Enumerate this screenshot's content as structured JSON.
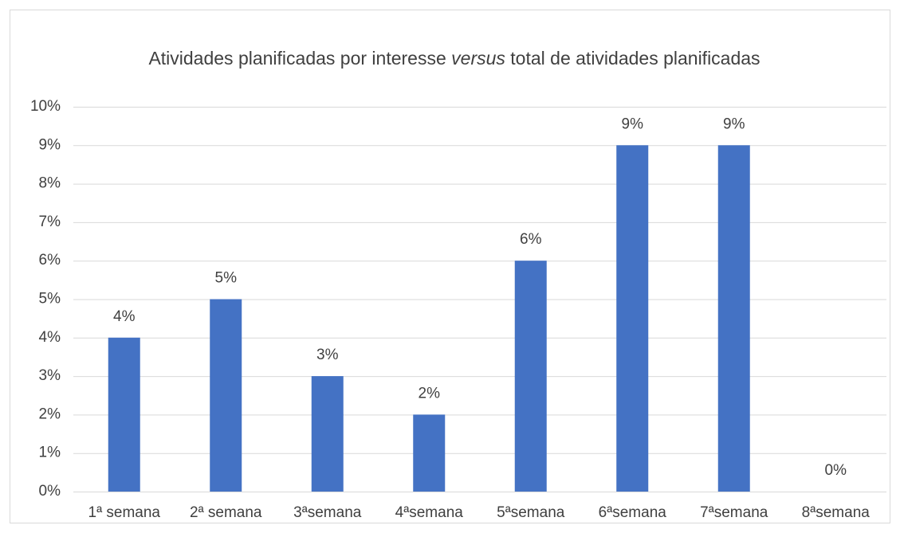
{
  "chart_data": {
    "type": "bar",
    "title": [
      "Atividades planificadas por interesse ",
      "versus",
      " total de atividades planificadas"
    ],
    "categories": [
      "1ª semana",
      "2ª semana",
      "3ªsemana",
      "4ªsemana",
      "5ªsemana",
      "6ªsemana",
      "7ªsemana",
      "8ªsemana"
    ],
    "values": [
      4,
      5,
      3,
      2,
      6,
      9,
      9,
      0
    ],
    "value_labels": [
      "4%",
      "5%",
      "3%",
      "2%",
      "6%",
      "9%",
      "9%",
      "0%"
    ],
    "color": "#4472c4",
    "ylim": [
      0,
      10
    ],
    "yticks": [
      {
        "value": 0,
        "label": "0%"
      },
      {
        "value": 1,
        "label": "1%"
      },
      {
        "value": 2,
        "label": "2%"
      },
      {
        "value": 3,
        "label": "3%"
      },
      {
        "value": 4,
        "label": "4%"
      },
      {
        "value": 5,
        "label": "5%"
      },
      {
        "value": 6,
        "label": "6%"
      },
      {
        "value": 7,
        "label": "7%"
      },
      {
        "value": 8,
        "label": "8%"
      },
      {
        "value": 9,
        "label": "9%"
      },
      {
        "value": 10,
        "label": "10%"
      }
    ],
    "grid": true
  }
}
